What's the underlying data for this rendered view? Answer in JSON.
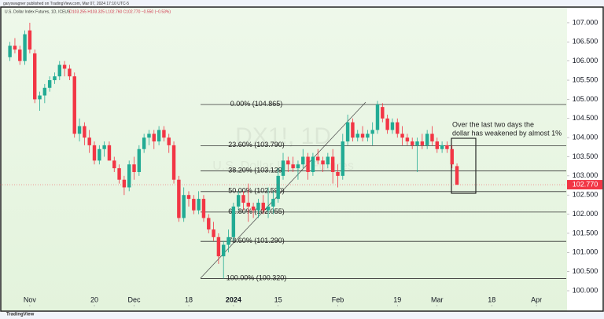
{
  "publisher": "garyswagner published on TradingView.com, Mar 07, 2024 17:10 UTC-5",
  "footer_logo": "TradingView",
  "chart_data": {
    "type": "candlestick",
    "title": "U.S. Dollar Index Futures, 1D, ICEUS",
    "header_values": "O103.255 H103.325 L102.760 C102.770 −0.550 (−0.53%)",
    "watermark": "DX1!, 1D",
    "watermark_subtitle": "U.S. Dollar Index Futures",
    "up_color": "#22ab94",
    "down_color": "#f23645",
    "xlim": [
      -2,
      112
    ],
    "xticks": [
      {
        "value": 4,
        "label": "Nov"
      },
      {
        "value": 17,
        "label": "20"
      },
      {
        "value": 25,
        "label": "Dec"
      },
      {
        "value": 36,
        "label": "18"
      },
      {
        "value": 45,
        "label": "2024"
      },
      {
        "value": 54,
        "label": "15"
      },
      {
        "value": 66,
        "label": "Feb"
      },
      {
        "value": 78,
        "label": "19"
      },
      {
        "value": 86,
        "label": "Mar"
      },
      {
        "value": 97,
        "label": "18"
      },
      {
        "value": 106,
        "label": "Apr"
      }
    ],
    "ylim": [
      99.59,
      107.43
    ],
    "yticks": [
      {
        "value": 100,
        "label": "100.000"
      },
      {
        "value": 100.5,
        "label": "100.500"
      },
      {
        "value": 101,
        "label": "101.000"
      },
      {
        "value": 101.5,
        "label": "101.500"
      },
      {
        "value": 102,
        "label": "102.000"
      },
      {
        "value": 102.5,
        "label": "102.500"
      },
      {
        "value": 103,
        "label": "103.000"
      },
      {
        "value": 103.5,
        "label": "103.500"
      },
      {
        "value": 104,
        "label": "104.000"
      },
      {
        "value": 104.5,
        "label": "104.500"
      },
      {
        "value": 105,
        "label": "105.000"
      },
      {
        "value": 105.5,
        "label": "105.500"
      },
      {
        "value": 106,
        "label": "106.000"
      },
      {
        "value": 106.5,
        "label": "106.500"
      },
      {
        "value": 107,
        "label": "107.000"
      }
    ],
    "last_price": {
      "value": 102.77,
      "label": "102.770"
    },
    "fib_levels": [
      {
        "value": 104.865,
        "label": "0.00% (104.865)"
      },
      {
        "value": 103.79,
        "label": "23.60% (103.790)"
      },
      {
        "value": 103.129,
        "label": "38.20% (103.129)"
      },
      {
        "value": 102.59,
        "label": "50.00% (102.590)"
      },
      {
        "value": 102.055,
        "label": "61.80% (102.055)"
      },
      {
        "value": 101.29,
        "label": "78.60% (101.290)"
      },
      {
        "value": 100.32,
        "label": "100.00% (100.320)"
      }
    ],
    "annotation": [
      "Over the last two days the",
      "dollar has weakened by almost 1%"
    ],
    "candles": [
      [
        106.1,
        106.5,
        106.0,
        106.4
      ],
      [
        106.4,
        106.6,
        106.2,
        106.3
      ],
      [
        106.3,
        106.4,
        105.9,
        106.0
      ],
      [
        106.0,
        106.8,
        105.9,
        106.7
      ],
      [
        106.8,
        107.0,
        106.2,
        106.3
      ],
      [
        106.2,
        106.3,
        104.9,
        105.0
      ],
      [
        105.0,
        105.2,
        104.7,
        105.1
      ],
      [
        105.1,
        105.4,
        104.9,
        105.3
      ],
      [
        105.3,
        105.6,
        105.2,
        105.5
      ],
      [
        105.5,
        105.7,
        105.4,
        105.6
      ],
      [
        105.6,
        106.0,
        105.5,
        105.9
      ],
      [
        105.9,
        106.0,
        105.6,
        105.8
      ],
      [
        105.8,
        105.9,
        105.5,
        105.6
      ],
      [
        105.6,
        105.7,
        104.0,
        104.1
      ],
      [
        104.1,
        104.5,
        103.9,
        104.3
      ],
      [
        104.3,
        104.4,
        103.8,
        104.0
      ],
      [
        104.0,
        104.2,
        103.6,
        103.8
      ],
      [
        103.8,
        103.9,
        103.3,
        103.4
      ],
      [
        103.4,
        103.8,
        103.3,
        103.7
      ],
      [
        103.7,
        103.9,
        103.5,
        103.8
      ],
      [
        103.8,
        103.9,
        103.4,
        103.4
      ],
      [
        103.4,
        103.5,
        103.1,
        103.2
      ],
      [
        103.2,
        103.3,
        102.8,
        102.9
      ],
      [
        102.9,
        103.0,
        102.5,
        102.7
      ],
      [
        102.7,
        103.4,
        102.6,
        103.3
      ],
      [
        103.3,
        103.5,
        102.9,
        103.1
      ],
      [
        103.1,
        103.8,
        103.0,
        103.7
      ],
      [
        103.7,
        104.1,
        103.6,
        104.0
      ],
      [
        104.0,
        104.2,
        103.8,
        104.1
      ],
      [
        104.1,
        104.2,
        103.7,
        103.9
      ],
      [
        103.9,
        104.3,
        103.8,
        104.2
      ],
      [
        104.2,
        104.3,
        103.9,
        104.0
      ],
      [
        104.0,
        104.1,
        103.6,
        103.8
      ],
      [
        103.8,
        103.9,
        102.8,
        102.9
      ],
      [
        102.9,
        103.0,
        101.8,
        101.9
      ],
      [
        101.9,
        102.7,
        101.8,
        102.5
      ],
      [
        102.5,
        102.6,
        102.2,
        102.4
      ],
      [
        102.4,
        102.5,
        102.0,
        102.1
      ],
      [
        102.1,
        102.6,
        102.0,
        102.4
      ],
      [
        102.4,
        102.5,
        101.8,
        101.9
      ],
      [
        101.9,
        102.0,
        101.5,
        101.6
      ],
      [
        101.6,
        101.8,
        101.3,
        101.4
      ],
      [
        101.4,
        101.5,
        100.7,
        100.9
      ],
      [
        100.9,
        101.3,
        100.32,
        101.2
      ],
      [
        101.2,
        101.6,
        101.0,
        101.4
      ],
      [
        101.4,
        102.3,
        101.3,
        102.2
      ],
      [
        102.2,
        102.6,
        102.1,
        102.5
      ],
      [
        102.5,
        102.6,
        102.1,
        102.3
      ],
      [
        102.3,
        102.8,
        101.8,
        102.2
      ],
      [
        102.2,
        102.3,
        101.9,
        102.1
      ],
      [
        102.1,
        102.4,
        101.9,
        102.3
      ],
      [
        102.3,
        102.5,
        102.0,
        102.1
      ],
      [
        102.1,
        102.7,
        101.9,
        102.2
      ],
      [
        102.2,
        102.6,
        102.0,
        102.4
      ],
      [
        102.4,
        103.2,
        102.3,
        103.0
      ],
      [
        103.0,
        103.6,
        102.9,
        103.4
      ],
      [
        103.4,
        103.5,
        103.1,
        103.3
      ],
      [
        103.3,
        103.5,
        103.1,
        103.2
      ],
      [
        103.2,
        103.4,
        102.9,
        103.3
      ],
      [
        103.3,
        103.7,
        103.2,
        103.5
      ],
      [
        103.5,
        103.6,
        102.9,
        103.1
      ],
      [
        103.1,
        103.6,
        103.0,
        103.5
      ],
      [
        103.5,
        103.7,
        103.3,
        103.4
      ],
      [
        103.4,
        103.5,
        103.1,
        103.3
      ],
      [
        103.3,
        103.6,
        103.2,
        103.5
      ],
      [
        103.5,
        103.7,
        102.8,
        103.1
      ],
      [
        103.1,
        103.3,
        102.7,
        103.0
      ],
      [
        103.0,
        104.1,
        102.9,
        103.9
      ],
      [
        103.9,
        104.6,
        103.8,
        104.4
      ],
      [
        104.4,
        104.5,
        103.9,
        104.0
      ],
      [
        104.0,
        104.2,
        103.9,
        104.1
      ],
      [
        104.1,
        104.3,
        103.9,
        104.0
      ],
      [
        104.0,
        104.2,
        103.9,
        104.1
      ],
      [
        104.1,
        104.4,
        103.8,
        104.2
      ],
      [
        104.2,
        104.96,
        104.1,
        104.865
      ],
      [
        104.8,
        104.9,
        104.4,
        104.5
      ],
      [
        104.5,
        104.6,
        104.1,
        104.2
      ],
      [
        104.2,
        104.5,
        104.1,
        104.4
      ],
      [
        104.4,
        104.5,
        104.0,
        104.1
      ],
      [
        104.1,
        104.3,
        103.8,
        104.0
      ],
      [
        104.0,
        104.1,
        103.8,
        103.9
      ],
      [
        103.9,
        104.0,
        103.7,
        103.8
      ],
      [
        103.8,
        104.0,
        103.1,
        103.9
      ],
      [
        103.9,
        104.1,
        103.7,
        103.8
      ],
      [
        103.8,
        104.2,
        103.7,
        104.1
      ],
      [
        104.1,
        104.3,
        103.8,
        103.9
      ],
      [
        103.9,
        104.0,
        103.6,
        103.7
      ],
      [
        103.7,
        103.9,
        103.6,
        103.8
      ],
      [
        103.8,
        103.9,
        103.6,
        103.7
      ],
      [
        103.7,
        103.8,
        103.2,
        103.3
      ],
      [
        103.255,
        103.325,
        102.76,
        102.77
      ]
    ]
  }
}
